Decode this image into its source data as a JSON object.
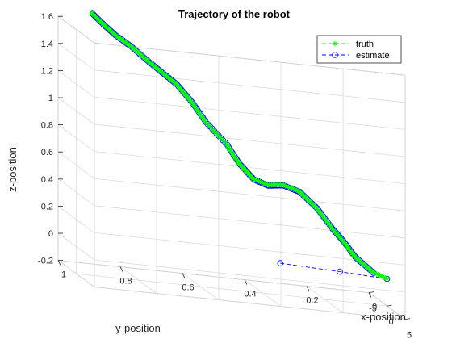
{
  "chart_data": {
    "type": "line",
    "dimensions": 3,
    "title": "Trajectory of the robot",
    "xlabel": "x-position",
    "ylabel": "y-position",
    "zlabel": "z-position",
    "xlim": [
      -5,
      5
    ],
    "ylim": [
      0,
      1
    ],
    "zlim": [
      -0.2,
      1.6
    ],
    "x_ticks": [
      "-5",
      "0",
      "5"
    ],
    "y_ticks": [
      "1",
      "0.8",
      "0.6",
      "0.4",
      "0.2",
      "0"
    ],
    "z_ticks": [
      "-0.2",
      "0",
      "0.2",
      "0.4",
      "0.6",
      "0.8",
      "1",
      "1.2",
      "1.4",
      "1.6"
    ],
    "grid": true,
    "legend_position": "top-right",
    "series": [
      {
        "name": "truth",
        "color": "#00ff00",
        "marker": "asterisk",
        "line": "dashed",
        "points": [
          {
            "x": 0.0,
            "y": 0.0,
            "z": 0.0
          },
          {
            "x": -0.6,
            "y": 0.04,
            "z": 0.03
          },
          {
            "x": -1.3,
            "y": 0.09,
            "z": 0.12
          },
          {
            "x": -1.1,
            "y": 0.13,
            "z": 0.23
          },
          {
            "x": -0.7,
            "y": 0.17,
            "z": 0.32
          },
          {
            "x": -0.7,
            "y": 0.22,
            "z": 0.46
          },
          {
            "x": -1.2,
            "y": 0.27,
            "z": 0.56
          },
          {
            "x": -1.5,
            "y": 0.32,
            "z": 0.59
          },
          {
            "x": -1.3,
            "y": 0.37,
            "z": 0.58
          },
          {
            "x": -1.0,
            "y": 0.42,
            "z": 0.62
          },
          {
            "x": -0.7,
            "y": 0.47,
            "z": 0.73
          },
          {
            "x": -0.6,
            "y": 0.51,
            "z": 0.86
          },
          {
            "x": -1.4,
            "y": 0.57,
            "z": 1.0
          },
          {
            "x": -1.8,
            "y": 0.61,
            "z": 1.13
          },
          {
            "x": -1.6,
            "y": 0.66,
            "z": 1.25
          },
          {
            "x": -1.0,
            "y": 0.71,
            "z": 1.33
          },
          {
            "x": -0.8,
            "y": 0.76,
            "z": 1.41
          },
          {
            "x": -1.5,
            "y": 0.81,
            "z": 1.5
          },
          {
            "x": -1.4,
            "y": 0.86,
            "z": 1.57
          },
          {
            "x": -1.0,
            "y": 0.9,
            "z": 1.64
          },
          {
            "x": -0.9,
            "y": 0.94,
            "z": 1.72
          }
        ]
      },
      {
        "name": "estimate",
        "color": "#0000ff",
        "marker": "circle",
        "line": "dashed",
        "points": [
          {
            "x": 0.0,
            "y": 0.0,
            "z": 0.0
          },
          {
            "x": -1.0,
            "y": 0.14,
            "z": 0.0
          },
          {
            "x": -2.0,
            "y": 0.32,
            "z": 0.0
          },
          {
            "x": -0.6,
            "y": 0.04,
            "z": 0.03
          },
          {
            "x": -1.3,
            "y": 0.09,
            "z": 0.12
          },
          {
            "x": -1.1,
            "y": 0.13,
            "z": 0.23
          },
          {
            "x": -0.7,
            "y": 0.17,
            "z": 0.32
          },
          {
            "x": -0.7,
            "y": 0.22,
            "z": 0.46
          },
          {
            "x": -1.2,
            "y": 0.27,
            "z": 0.56
          },
          {
            "x": -1.5,
            "y": 0.32,
            "z": 0.59
          },
          {
            "x": -1.3,
            "y": 0.37,
            "z": 0.58
          },
          {
            "x": -1.0,
            "y": 0.42,
            "z": 0.62
          },
          {
            "x": -0.7,
            "y": 0.47,
            "z": 0.73
          },
          {
            "x": -0.6,
            "y": 0.51,
            "z": 0.86
          },
          {
            "x": -1.4,
            "y": 0.57,
            "z": 1.0
          },
          {
            "x": -1.8,
            "y": 0.61,
            "z": 1.13
          },
          {
            "x": -1.6,
            "y": 0.66,
            "z": 1.25
          },
          {
            "x": -1.0,
            "y": 0.71,
            "z": 1.33
          },
          {
            "x": -0.8,
            "y": 0.76,
            "z": 1.41
          },
          {
            "x": -1.5,
            "y": 0.81,
            "z": 1.5
          },
          {
            "x": -1.4,
            "y": 0.86,
            "z": 1.57
          },
          {
            "x": -1.0,
            "y": 0.9,
            "z": 1.64
          },
          {
            "x": -0.9,
            "y": 0.94,
            "z": 1.72
          }
        ]
      }
    ]
  }
}
